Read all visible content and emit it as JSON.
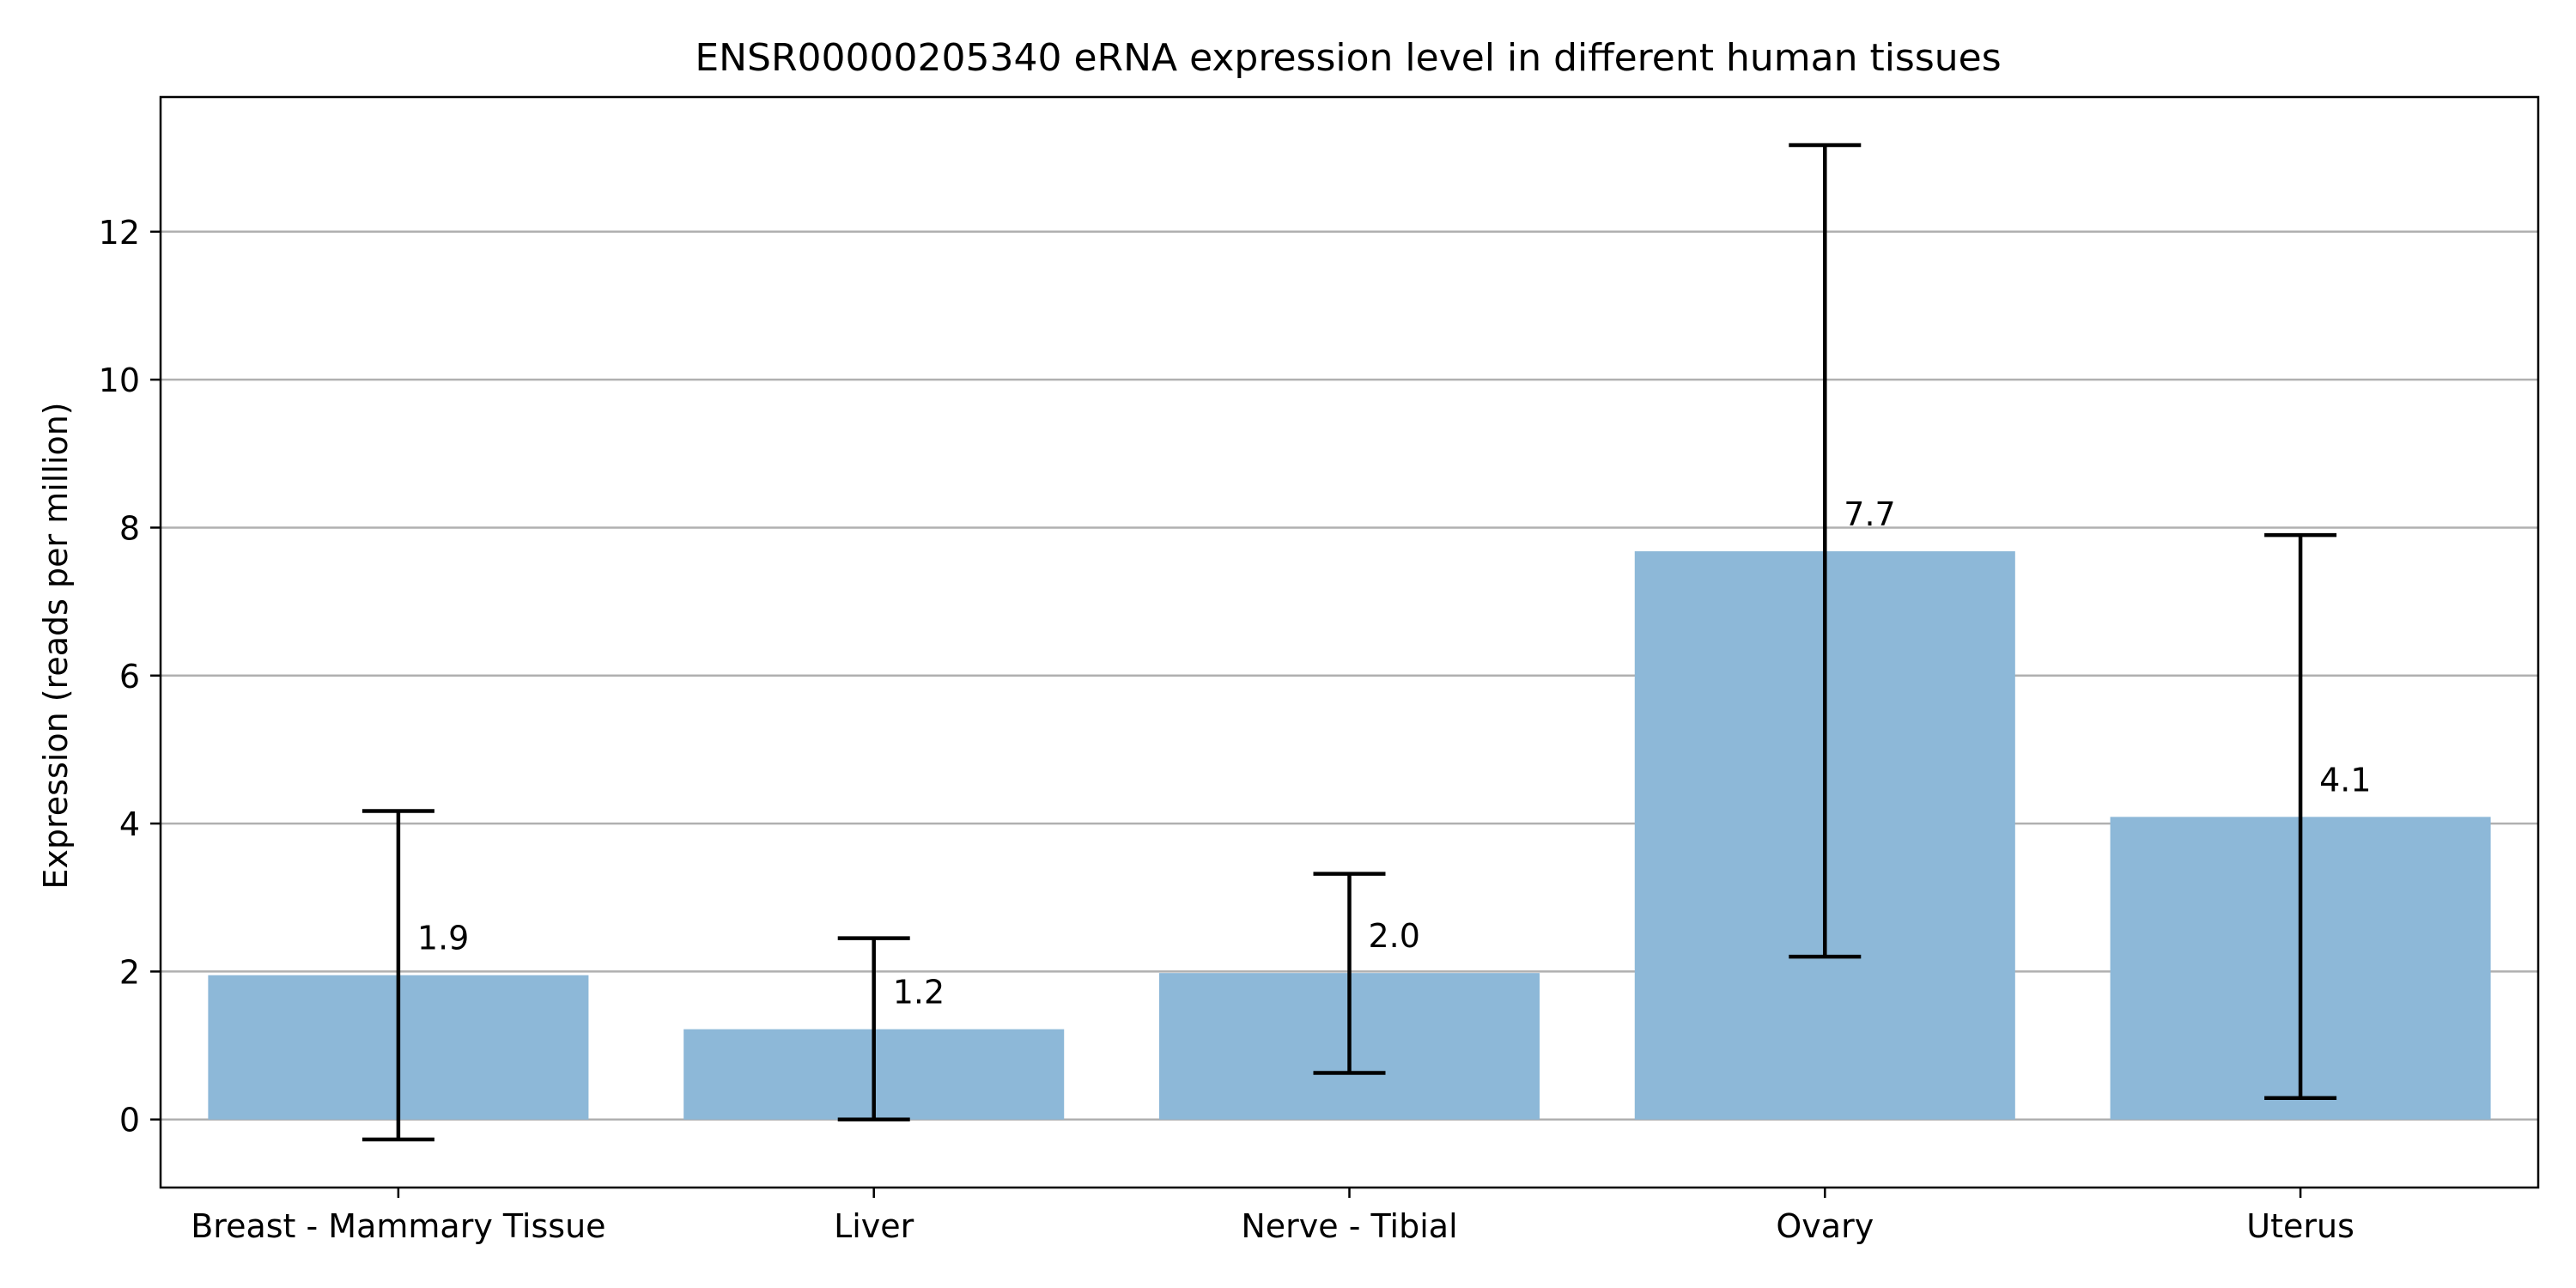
{
  "chart_data": {
    "type": "bar",
    "title": "ENSR00000205340 eRNA expression level in different human tissues",
    "xlabel": "",
    "ylabel": "Expression (reads per million)",
    "categories": [
      "Breast - Mammary Tissue",
      "Liver",
      "Nerve - Tibial",
      "Ovary",
      "Uterus"
    ],
    "values": [
      1.95,
      1.22,
      1.98,
      7.68,
      4.09
    ],
    "value_labels": [
      "1.9",
      "1.2",
      "2.0",
      "7.7",
      "4.1"
    ],
    "error_low": [
      -0.27,
      0.0,
      0.63,
      2.2,
      0.29
    ],
    "error_high": [
      4.17,
      2.45,
      3.32,
      13.17,
      7.9
    ],
    "ylim": [
      -0.92,
      13.82
    ],
    "yticks": [
      0,
      2,
      4,
      6,
      8,
      10,
      12
    ],
    "grid": "y",
    "legend": "none",
    "colors": {
      "bar": "#8db8d8",
      "grid": "#b0b0b0",
      "axis": "#000000",
      "error": "#000000"
    }
  }
}
